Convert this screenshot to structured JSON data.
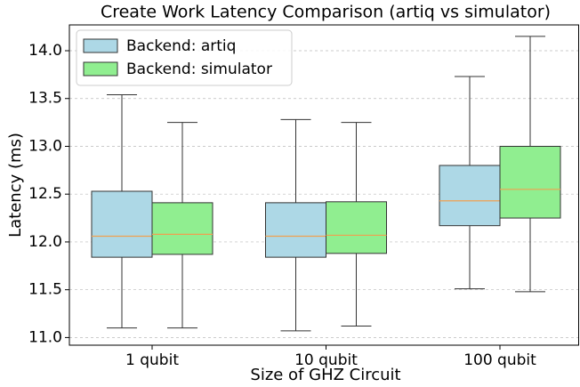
{
  "chart_data": {
    "type": "box",
    "title": "Create Work Latency Comparison (artiq vs simulator)",
    "xlabel": "Size of GHZ Circuit",
    "ylabel": "Latency (ms)",
    "categories": [
      "1 qubit",
      "10 qubit",
      "100 qubit"
    ],
    "series": [
      {
        "name": "Backend: artiq",
        "color": "#add8e6",
        "whislo": [
          11.1,
          11.07,
          11.51
        ],
        "q1": [
          11.84,
          11.84,
          12.17
        ],
        "median": [
          12.06,
          12.06,
          12.43
        ],
        "q3": [
          12.53,
          12.41,
          12.8
        ],
        "whishi": [
          13.54,
          13.28,
          13.73
        ]
      },
      {
        "name": "Backend: simulator",
        "color": "#90ee90",
        "whislo": [
          11.1,
          11.12,
          11.48
        ],
        "q1": [
          11.87,
          11.88,
          12.25
        ],
        "median": [
          12.08,
          12.07,
          12.55
        ],
        "q3": [
          12.41,
          12.42,
          13.0
        ],
        "whishi": [
          13.25,
          13.25,
          14.15
        ]
      }
    ],
    "median_color": "#f0a050",
    "ylim": [
      10.92,
      14.27
    ],
    "yticks": [
      {
        "value": 11,
        "label": "11.0"
      },
      11.5,
      {
        "value": 12,
        "label": "12.0"
      },
      12.5,
      {
        "value": 13,
        "label": "13.0"
      },
      13.5,
      {
        "value": 14,
        "label": "14.0"
      }
    ],
    "grid": true,
    "legend": "upper left"
  }
}
